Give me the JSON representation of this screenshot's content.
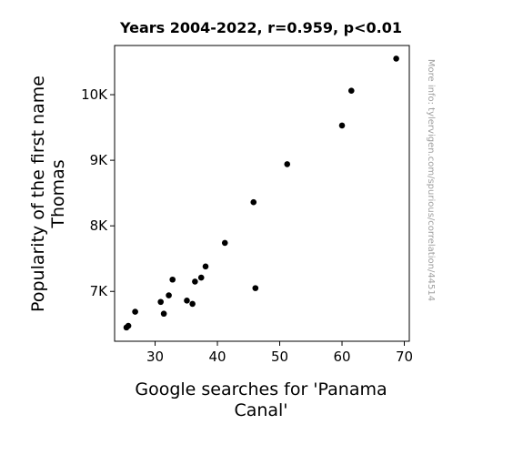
{
  "chart_data": {
    "type": "scatter",
    "title": "Years 2004-2022, r=0.959, p<0.01",
    "xlabel_lines": [
      "Google searches for 'Panama",
      "Canal'"
    ],
    "ylabel_lines": [
      "Popularity of the first name",
      "Thomas"
    ],
    "xlim": [
      23.5,
      70.8
    ],
    "ylim": [
      6240,
      10750
    ],
    "x_ticks": [
      {
        "value": 30,
        "label": "30"
      },
      {
        "value": 40,
        "label": "40"
      },
      {
        "value": 50,
        "label": "50"
      },
      {
        "value": 60,
        "label": "60"
      },
      {
        "value": 70,
        "label": "70"
      }
    ],
    "y_ticks": [
      {
        "value": 7000,
        "label": "7K"
      },
      {
        "value": 8000,
        "label": "8K"
      },
      {
        "value": 9000,
        "label": "9K"
      },
      {
        "value": 10000,
        "label": "10K"
      }
    ],
    "grid": false,
    "marker_color": "#000000",
    "points": [
      {
        "x": 25.4,
        "y": 6450
      },
      {
        "x": 25.7,
        "y": 6475
      },
      {
        "x": 26.8,
        "y": 6690
      },
      {
        "x": 30.9,
        "y": 6840
      },
      {
        "x": 31.4,
        "y": 6660
      },
      {
        "x": 32.2,
        "y": 6940
      },
      {
        "x": 32.8,
        "y": 7180
      },
      {
        "x": 35.1,
        "y": 6860
      },
      {
        "x": 36.0,
        "y": 6810
      },
      {
        "x": 36.4,
        "y": 7150
      },
      {
        "x": 37.4,
        "y": 7210
      },
      {
        "x": 38.1,
        "y": 7380
      },
      {
        "x": 41.2,
        "y": 7740
      },
      {
        "x": 45.8,
        "y": 8360
      },
      {
        "x": 46.1,
        "y": 7050
      },
      {
        "x": 51.2,
        "y": 8940
      },
      {
        "x": 60.0,
        "y": 9530
      },
      {
        "x": 61.5,
        "y": 10060
      },
      {
        "x": 68.7,
        "y": 10550
      }
    ]
  },
  "watermark": "More info: tylervigen.com/spurious/correlation/44514"
}
